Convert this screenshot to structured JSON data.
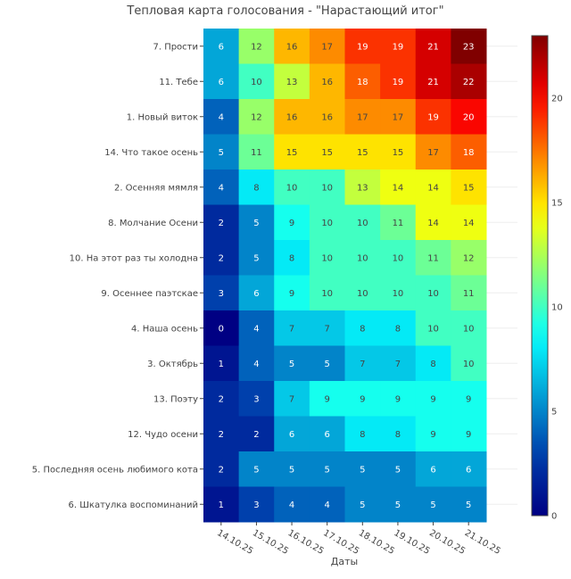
{
  "chart_data": {
    "type": "heatmap",
    "title": "Тепловая карта голосования - \"Нарастающий итог\"",
    "xlabel": "Даты",
    "ylabel": "",
    "colorscale": "jet",
    "zmin": 0,
    "zmax": 23,
    "colorbar_ticks": [
      "0",
      "5",
      "10",
      "15",
      "20"
    ],
    "x_categories": [
      "14.10.25",
      "15.10.25",
      "16.10.25",
      "17.10.25",
      "18.10.25",
      "19.10.25",
      "20.10.25",
      "21.10.25"
    ],
    "y_categories": [
      "7. Прости",
      "11. Тебе",
      "1. Новый виток",
      "14. Что такое осень",
      "2. Осенняя мямля",
      "8. Молчание Осени",
      "10. На этот раз ты холодна",
      "9. Осеннее паэтскае",
      "4. Наша осень",
      "3. Октябрь",
      "13. Поэту",
      "12. Чудо осени",
      "5. Последняя осень любимого кота",
      "6. Шкатулка воспоминаний"
    ],
    "z": [
      [
        6,
        12,
        16,
        17,
        19,
        19,
        21,
        23
      ],
      [
        6,
        10,
        13,
        16,
        18,
        19,
        21,
        22
      ],
      [
        4,
        12,
        16,
        16,
        17,
        17,
        19,
        20
      ],
      [
        5,
        11,
        15,
        15,
        15,
        15,
        17,
        18
      ],
      [
        4,
        8,
        10,
        10,
        13,
        14,
        14,
        15
      ],
      [
        2,
        5,
        9,
        10,
        10,
        11,
        14,
        14
      ],
      [
        2,
        5,
        8,
        10,
        10,
        10,
        11,
        12
      ],
      [
        3,
        6,
        9,
        10,
        10,
        10,
        10,
        11
      ],
      [
        0,
        4,
        7,
        7,
        8,
        8,
        10,
        10
      ],
      [
        1,
        4,
        5,
        5,
        7,
        7,
        8,
        10
      ],
      [
        2,
        3,
        7,
        9,
        9,
        9,
        9,
        9
      ],
      [
        2,
        2,
        6,
        6,
        8,
        8,
        9,
        9
      ],
      [
        2,
        5,
        5,
        5,
        5,
        5,
        6,
        6
      ],
      [
        1,
        3,
        4,
        4,
        5,
        5,
        5,
        5
      ]
    ]
  }
}
